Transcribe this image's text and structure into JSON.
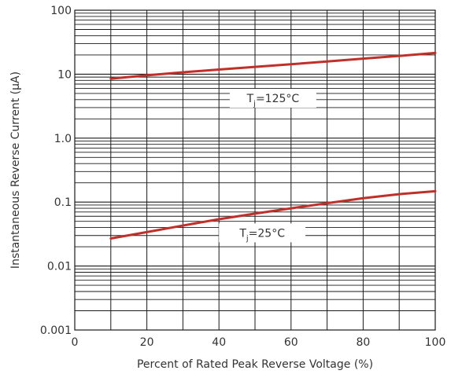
{
  "chart_data": {
    "type": "line",
    "title": "",
    "xlabel": "Percent of Rated Peak Reverse Voltage (%)",
    "ylabel": "Instantaneous Reverse Current (μA)",
    "x_scale": "linear",
    "y_scale": "log",
    "xlim": [
      0,
      100
    ],
    "ylim": [
      0.001,
      100
    ],
    "x_ticks": [
      "0",
      "20",
      "40",
      "60",
      "80",
      "100"
    ],
    "y_ticks": [
      {
        "value": 0.001,
        "label": "0.001"
      },
      {
        "value": 0.01,
        "label": "0.01"
      },
      {
        "value": 0.1,
        "label": "0.1"
      },
      {
        "value": 1,
        "label": "1.0"
      },
      {
        "value": 10,
        "label": "10"
      },
      {
        "value": 100,
        "label": "100"
      }
    ],
    "grid": true,
    "series": [
      {
        "label_main": "T",
        "label_sub": "j",
        "label_rest": "=125°C",
        "color": "#c0302a",
        "x": [
          10,
          20,
          30,
          40,
          50,
          60,
          70,
          80,
          90,
          100
        ],
        "y": [
          8.5,
          9.6,
          10.7,
          11.8,
          13,
          14.3,
          15.8,
          17.5,
          19.3,
          21.5
        ]
      },
      {
        "label_main": "T",
        "label_sub": "j",
        "label_rest": "=25°C",
        "color": "#c0302a",
        "x": [
          10,
          20,
          30,
          40,
          50,
          60,
          70,
          80,
          90,
          100
        ],
        "y": [
          0.027,
          0.034,
          0.043,
          0.054,
          0.066,
          0.08,
          0.096,
          0.115,
          0.133,
          0.148
        ]
      }
    ]
  }
}
